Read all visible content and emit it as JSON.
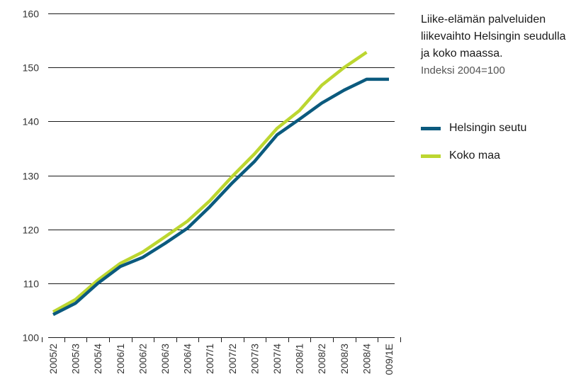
{
  "chart_data": {
    "type": "line",
    "title": "Liike-elämän palveluiden liikevaihto Helsingin seudulla ja koko maassa.",
    "subtitle": "Indeksi 2004=100",
    "categories": [
      "2005/2",
      "2005/3",
      "2005/4",
      "2006/1",
      "2006/2",
      "2006/3",
      "2006/4",
      "2007/1",
      "2007/2",
      "2007/3",
      "2007/4",
      "2008/1",
      "2008/2",
      "2008/3",
      "2008/4",
      "009/1E"
    ],
    "ylim": [
      100,
      160
    ],
    "yticks": [
      100,
      110,
      120,
      130,
      140,
      150,
      160
    ],
    "grid": true,
    "legend_position": "right",
    "series": [
      {
        "name": "Helsingin seutu",
        "color": "#0b5a7e",
        "values": [
          104.2,
          106.3,
          110.0,
          113.1,
          114.8,
          117.4,
          120.2,
          124.2,
          128.6,
          132.6,
          137.5,
          140.4,
          143.4,
          145.8,
          147.8,
          147.8
        ]
      },
      {
        "name": "Koko maa",
        "color": "#bcd630",
        "values": [
          104.7,
          107.0,
          110.6,
          113.7,
          115.8,
          118.6,
          121.5,
          125.3,
          129.8,
          134.0,
          138.7,
          142.0,
          146.7,
          150.0,
          152.8,
          null
        ]
      }
    ]
  }
}
